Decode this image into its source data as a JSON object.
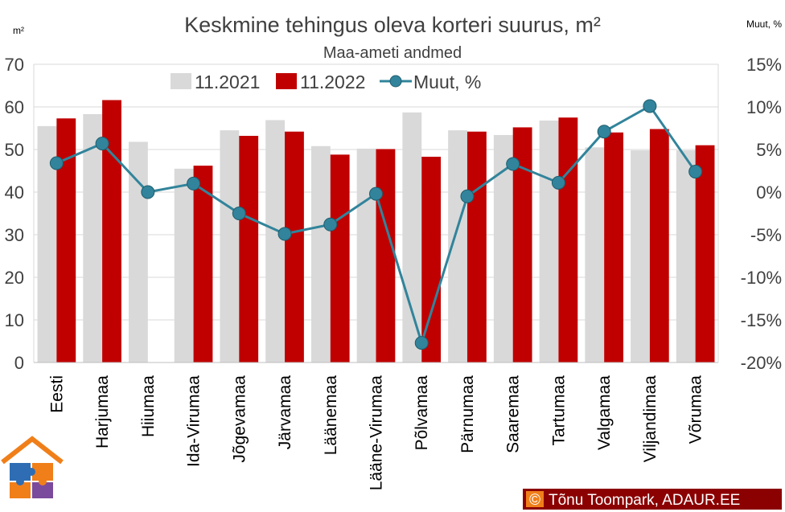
{
  "chart_data": {
    "type": "bar",
    "title": "Keskmine tehingus oleva korteri suurus, m²",
    "subtitle": "Maa-ameti andmed",
    "y_left_unit": "m²",
    "y_right_unit": "Muut, %",
    "y_left_ticks": [
      "0",
      "10",
      "20",
      "30",
      "40",
      "50",
      "60",
      "70"
    ],
    "y_right_ticks": [
      "-20%",
      "-15%",
      "-10%",
      "-5%",
      "0%",
      "5%",
      "10%",
      "15%"
    ],
    "ylim": [
      0,
      70
    ],
    "y2lim": [
      -20,
      15
    ],
    "grid": true,
    "legend_position": "top",
    "categories": [
      "Eesti",
      "Harjumaa",
      "Hiiumaa",
      "Ida-Virumaa",
      "Jõgevamaa",
      "Järvamaa",
      "Läänemaa",
      "Lääne-Virumaa",
      "Põlvamaa",
      "Pärnumaa",
      "Saaremaa",
      "Tartumaa",
      "Valgamaa",
      "Viljandimaa",
      "Võrumaa"
    ],
    "series": [
      {
        "name": "11.2021",
        "type": "bar",
        "axis": "left",
        "color": "#d9d9d9",
        "values": [
          55.5,
          58.3,
          51.8,
          45.5,
          54.5,
          56.9,
          50.8,
          50.2,
          58.7,
          54.5,
          53.4,
          56.8,
          50.5,
          49.8,
          49.8
        ]
      },
      {
        "name": "11.2022",
        "type": "bar",
        "axis": "left",
        "color": "#c00000",
        "values": [
          57.3,
          61.6,
          null,
          46.2,
          53.2,
          54.2,
          48.8,
          50.1,
          48.3,
          54.2,
          55.2,
          57.5,
          54.0,
          54.8,
          51.0
        ]
      },
      {
        "name": "Muut, %",
        "type": "line",
        "axis": "right",
        "color": "#31849b",
        "values": [
          3.4,
          5.7,
          0.0,
          1.0,
          -2.5,
          -4.9,
          -3.8,
          -0.2,
          -17.7,
          -0.5,
          3.3,
          1.1,
          7.1,
          10.1,
          2.4
        ]
      }
    ]
  },
  "copyright": {
    "symbol": "©",
    "text": "Tõnu Toompark, ADAUR.EE"
  },
  "colors": {
    "gridline": "#d9d9d9",
    "axis_text": "#404040",
    "logo_orange": "#f07f1a",
    "logo_blue": "#2e6db4",
    "logo_purple": "#7a4a9c"
  }
}
